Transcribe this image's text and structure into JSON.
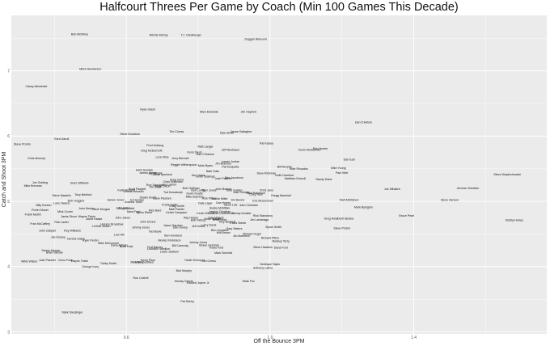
{
  "chart_data": {
    "type": "scatter",
    "title": "Halfcourt Threes Per Game by Coach (Min 100 Games This Decade)",
    "xlabel": "Off the Bounce 3PM",
    "ylabel": "Catch and Shoot 3PM",
    "xlim": [
      0.28,
      1.77
    ],
    "ylim": [
      2.97,
      7.85
    ],
    "xticks": [
      0.6,
      1.0,
      1.4
    ],
    "yticks": [
      3,
      4,
      5,
      6,
      7
    ],
    "tick_labels_x": [
      "0.6",
      "1.0",
      "1.4"
    ],
    "tick_labels_y": [
      "3",
      "4",
      "5",
      "6",
      "7"
    ],
    "grid": true,
    "background": "#ebebeb",
    "grid_color": "#ffffff",
    "points": [
      {
        "label": "Bob McKillop",
        "x": 0.47,
        "y": 7.56
      },
      {
        "label": "Ritchie McKay",
        "x": 0.69,
        "y": 7.55
      },
      {
        "label": "T.J. Otzelberger",
        "x": 0.78,
        "y": 7.55
      },
      {
        "label": "Duggan Blaxxonl",
        "x": 0.96,
        "y": 7.49
      },
      {
        "label": "Mitch Henderson",
        "x": 0.5,
        "y": 7.03
      },
      {
        "label": "Casey Alexander",
        "x": 0.35,
        "y": 6.76
      },
      {
        "label": "Ryan Odom",
        "x": 0.66,
        "y": 6.41
      },
      {
        "label": "Allen Edwards",
        "x": 0.83,
        "y": 6.37
      },
      {
        "label": "Jim Hayford",
        "x": 0.94,
        "y": 6.37
      },
      {
        "label": "Dan D'Antoni",
        "x": 1.26,
        "y": 6.21
      },
      {
        "label": "Tim Cluess",
        "x": 0.74,
        "y": 6.07
      },
      {
        "label": "Kyle Smith",
        "x": 0.88,
        "y": 6.05
      },
      {
        "label": "Jesse Gallagher",
        "x": 0.92,
        "y": 6.07
      },
      {
        "label": "Steve Donahue",
        "x": 0.61,
        "y": 6.03
      },
      {
        "label": "Ezra Garoil",
        "x": 0.42,
        "y": 5.96
      },
      {
        "label": "Pat Kelsey",
        "x": 0.99,
        "y": 5.89
      },
      {
        "label": "Steve Prohm",
        "x": 0.31,
        "y": 5.88
      },
      {
        "label": "Fred Hoiberg",
        "x": 0.68,
        "y": 5.86
      },
      {
        "label": "Matt Langel",
        "x": 0.82,
        "y": 5.84
      },
      {
        "label": "Jeff Neubauer",
        "x": 0.89,
        "y": 5.79
      },
      {
        "label": "Kevin McGeehan",
        "x": 1.11,
        "y": 5.79
      },
      {
        "label": "Ron Hunter",
        "x": 1.14,
        "y": 5.81
      },
      {
        "label": "Greg McDermott",
        "x": 0.67,
        "y": 5.78
      },
      {
        "label": "Kens Davis",
        "x": 0.79,
        "y": 5.75
      },
      {
        "label": "Dan O'Hanlon",
        "x": 0.82,
        "y": 5.72
      },
      {
        "label": "Leon Rice",
        "x": 0.7,
        "y": 5.68
      },
      {
        "label": "Jerry Bennett",
        "x": 0.75,
        "y": 5.66
      },
      {
        "label": "Chris Mooney",
        "x": 0.35,
        "y": 5.66
      },
      {
        "label": "Dan Earl",
        "x": 1.22,
        "y": 5.64
      },
      {
        "label": "Lamar Jordan",
        "x": 0.89,
        "y": 5.61
      },
      {
        "label": "Jim Brannen",
        "x": 0.87,
        "y": 5.58
      },
      {
        "label": "Reggie Witherspoon",
        "x": 0.76,
        "y": 5.56
      },
      {
        "label": "Mark Byars",
        "x": 0.82,
        "y": 5.55
      },
      {
        "label": "Pat Duquette",
        "x": 0.89,
        "y": 5.53
      },
      {
        "label": "Mike Young",
        "x": 1.19,
        "y": 5.51
      },
      {
        "label": "Bill Murphy",
        "x": 1.04,
        "y": 5.53
      },
      {
        "label": "Mike Rhoades",
        "x": 1.08,
        "y": 5.5
      },
      {
        "label": "Herb Sendek",
        "x": 0.65,
        "y": 5.48
      },
      {
        "label": "Nate Oats",
        "x": 0.84,
        "y": 5.46
      },
      {
        "label": "Dave Richman",
        "x": 0.99,
        "y": 5.43
      },
      {
        "label": "Keith Dambrot",
        "x": 1.04,
        "y": 5.4
      },
      {
        "label": "Paul Weir",
        "x": 1.2,
        "y": 5.44
      },
      {
        "label": "Steve Wojciechowski",
        "x": 1.66,
        "y": 5.41
      },
      {
        "label": "James Jones",
        "x": 0.66,
        "y": 5.44
      },
      {
        "label": "Jay Wright",
        "x": 0.68,
        "y": 5.43
      },
      {
        "label": "Jason Spurlock",
        "x": 0.7,
        "y": 5.41
      },
      {
        "label": "Jim Crews",
        "x": 0.8,
        "y": 5.4
      },
      {
        "label": "Kevin Stallings",
        "x": 0.82,
        "y": 5.38
      },
      {
        "label": "Matthew Driscoll",
        "x": 1.07,
        "y": 5.35
      },
      {
        "label": "Randy Rahe",
        "x": 1.15,
        "y": 5.34
      },
      {
        "label": "Ben Jacobson",
        "x": 0.9,
        "y": 5.36
      },
      {
        "label": "Josh Pastner",
        "x": 0.87,
        "y": 5.35
      },
      {
        "label": "Greg Gard",
        "x": 0.74,
        "y": 5.33
      },
      {
        "label": "Chris Holtmann",
        "x": 0.73,
        "y": 5.3
      },
      {
        "label": "Joe Golding",
        "x": 0.36,
        "y": 5.29
      },
      {
        "label": "Buzz Williams",
        "x": 0.47,
        "y": 5.28
      },
      {
        "label": "Mike Brennan",
        "x": 0.34,
        "y": 5.24
      },
      {
        "label": "Jay Ladner",
        "x": 0.72,
        "y": 5.26
      },
      {
        "label": "Ron Sanchez",
        "x": 0.68,
        "y": 5.25
      },
      {
        "label": "Jamie Dixon",
        "x": 0.7,
        "y": 5.23
      },
      {
        "label": "Tim Craft",
        "x": 0.68,
        "y": 5.22
      },
      {
        "label": "Scott Padgett",
        "x": 0.63,
        "y": 5.19
      },
      {
        "label": "Keith Richard",
        "x": 0.6,
        "y": 5.17
      },
      {
        "label": "Bob Hoffman",
        "x": 0.78,
        "y": 5.2
      },
      {
        "label": "Bart Lundy",
        "x": 0.8,
        "y": 5.17
      },
      {
        "label": "Tyler Jones",
        "x": 0.83,
        "y": 5.17
      },
      {
        "label": "John Becker",
        "x": 0.87,
        "y": 5.19
      },
      {
        "label": "Todd Golden",
        "x": 0.9,
        "y": 5.17
      },
      {
        "label": "Chris Jans",
        "x": 0.99,
        "y": 5.17
      },
      {
        "label": "Joe Mihalich",
        "x": 1.34,
        "y": 5.19
      },
      {
        "label": "Jerome Christian",
        "x": 1.55,
        "y": 5.2
      },
      {
        "label": "Donna Johnson",
        "x": 0.62,
        "y": 5.15
      },
      {
        "label": "Tod Kowalczyk",
        "x": 0.73,
        "y": 5.14
      },
      {
        "label": "Josh Schertz",
        "x": 0.92,
        "y": 5.14
      },
      {
        "label": "Nick Robinson",
        "x": 0.96,
        "y": 5.13
      },
      {
        "label": "Kevin Keatts",
        "x": 0.79,
        "y": 5.12
      },
      {
        "label": "Craig Neal",
        "x": 0.96,
        "y": 5.11
      },
      {
        "label": "Tony Benford",
        "x": 0.48,
        "y": 5.1
      },
      {
        "label": "Steve Masiello",
        "x": 0.42,
        "y": 5.09
      },
      {
        "label": "Gregg Marshall",
        "x": 1.03,
        "y": 5.09
      },
      {
        "label": "Mike Boynton",
        "x": 0.79,
        "y": 5.07
      },
      {
        "label": "Shaka Smart",
        "x": 0.66,
        "y": 5.06
      },
      {
        "label": "Dave Paulsen",
        "x": 0.7,
        "y": 5.05
      },
      {
        "label": "Rick Pitino",
        "x": 0.83,
        "y": 5.05
      },
      {
        "label": "Archie Miller",
        "x": 0.86,
        "y": 5.04
      },
      {
        "label": "Matt McMahon",
        "x": 1.22,
        "y": 5.02
      },
      {
        "label": "Steve Henson",
        "x": 1.5,
        "y": 5.02
      },
      {
        "label": "Eric Musselman",
        "x": 0.98,
        "y": 5.01
      },
      {
        "label": "Jim Boone",
        "x": 0.91,
        "y": 5.02
      },
      {
        "label": "James Jones",
        "x": 0.57,
        "y": 5.02
      },
      {
        "label": "Ed Cooley",
        "x": 0.63,
        "y": 5.02
      },
      {
        "label": "Andrew Toole",
        "x": 0.62,
        "y": 4.99
      },
      {
        "label": "Bob Huggins",
        "x": 0.46,
        "y": 5.01
      },
      {
        "label": "Lonc Owens",
        "x": 0.42,
        "y": 4.97
      },
      {
        "label": "Dan Hurley",
        "x": 0.87,
        "y": 4.98
      },
      {
        "label": "Dale Layer",
        "x": 0.82,
        "y": 4.97
      },
      {
        "label": "Billy Donlon",
        "x": 0.37,
        "y": 4.94
      },
      {
        "label": "Frank Haith",
        "x": 0.72,
        "y": 4.95
      },
      {
        "label": "Craig Smith",
        "x": 0.74,
        "y": 4.93
      },
      {
        "label": "Steve Lutz",
        "x": 0.89,
        "y": 4.95
      },
      {
        "label": "John Christian",
        "x": 0.94,
        "y": 4.94
      },
      {
        "label": "Mark Byington",
        "x": 1.26,
        "y": 4.91
      },
      {
        "label": "Porter Moser",
        "x": 0.36,
        "y": 4.87
      },
      {
        "label": "John Becker",
        "x": 0.49,
        "y": 4.89
      },
      {
        "label": "Lacie Morgan",
        "x": 0.53,
        "y": 4.88
      },
      {
        "label": "Jeff Linder",
        "x": 0.59,
        "y": 4.9
      },
      {
        "label": "Rick Byrd",
        "x": 0.68,
        "y": 4.86
      },
      {
        "label": "Bucky McMillan",
        "x": 0.86,
        "y": 4.9
      },
      {
        "label": "Andy Enfield",
        "x": 0.6,
        "y": 4.89
      },
      {
        "label": "Matt Painter",
        "x": 0.74,
        "y": 4.88
      },
      {
        "label": "Jamion Christian",
        "x": 0.86,
        "y": 4.84
      },
      {
        "label": "Mick Cronin",
        "x": 0.43,
        "y": 4.84
      },
      {
        "label": "Dana Ford",
        "x": 0.62,
        "y": 4.84
      },
      {
        "label": "Byron Rimm",
        "x": 0.65,
        "y": 4.83
      },
      {
        "label": "Kelvin Sampson",
        "x": 0.74,
        "y": 4.83
      },
      {
        "label": "Kevin Willard",
        "x": 0.82,
        "y": 4.82
      },
      {
        "label": "Brad Underwood",
        "x": 0.87,
        "y": 4.82
      },
      {
        "label": "Tommy Amaker",
        "x": 0.92,
        "y": 4.82
      },
      {
        "label": "Rick Stansbury",
        "x": 0.98,
        "y": 4.78
      },
      {
        "label": "Frank Martin",
        "x": 0.34,
        "y": 4.8
      },
      {
        "label": "Jamie Dixon",
        "x": 0.44,
        "y": 4.77
      },
      {
        "label": "Wayne Tinkle",
        "x": 0.49,
        "y": 4.77
      },
      {
        "label": "Jared Haase",
        "x": 0.51,
        "y": 4.73
      },
      {
        "label": "John Jakus",
        "x": 0.59,
        "y": 4.75
      },
      {
        "label": "Ray Harper",
        "x": 0.78,
        "y": 4.75
      },
      {
        "label": "Dan Majerle",
        "x": 0.85,
        "y": 4.75
      },
      {
        "label": "Brian Wardle",
        "x": 0.84,
        "y": 4.73
      },
      {
        "label": "Bruce Pearl",
        "x": 1.38,
        "y": 4.78
      },
      {
        "label": "Greg Heiar",
        "x": 1.17,
        "y": 4.74
      },
      {
        "label": "Darin Bodea",
        "x": 1.21,
        "y": 4.74
      },
      {
        "label": "Jim Larranaga",
        "x": 0.97,
        "y": 4.72
      },
      {
        "label": "Bobby Hurley",
        "x": 1.68,
        "y": 4.71
      },
      {
        "label": "Brett Reed",
        "x": 0.86,
        "y": 4.72
      },
      {
        "label": "Bob Richey",
        "x": 0.8,
        "y": 4.71
      },
      {
        "label": "John Dunne",
        "x": 0.66,
        "y": 4.69
      },
      {
        "label": "Fran McCaffery",
        "x": 0.36,
        "y": 4.66
      },
      {
        "label": "Rob Lanier",
        "x": 0.42,
        "y": 4.68
      },
      {
        "label": "Tony Bennett",
        "x": 0.88,
        "y": 4.69
      },
      {
        "label": "Travis Steele",
        "x": 0.91,
        "y": 4.67
      },
      {
        "label": "Horace Broadnax",
        "x": 0.56,
        "y": 4.65
      },
      {
        "label": "Jason Gardner",
        "x": 0.73,
        "y": 4.63
      },
      {
        "label": "Larry Davis",
        "x": 0.83,
        "y": 4.64
      },
      {
        "label": "Jeff Jones",
        "x": 0.8,
        "y": 4.62
      },
      {
        "label": "Byron Smith",
        "x": 1.01,
        "y": 4.61
      },
      {
        "label": "LeVelle Moton",
        "x": 0.53,
        "y": 4.62
      },
      {
        "label": "Johnny Jones",
        "x": 0.64,
        "y": 4.6
      },
      {
        "label": "Dan Hurley",
        "x": 0.75,
        "y": 4.6
      },
      {
        "label": "Gary Waters",
        "x": 0.9,
        "y": 4.58
      },
      {
        "label": "Steve Prohm",
        "x": 1.2,
        "y": 4.59
      },
      {
        "label": "Ben Howland",
        "x": 0.86,
        "y": 4.56
      },
      {
        "label": "John Calipari",
        "x": 0.38,
        "y": 4.55
      },
      {
        "label": "Roy Williams",
        "x": 0.45,
        "y": 4.55
      },
      {
        "label": "Tad Boyle",
        "x": 0.68,
        "y": 4.54
      },
      {
        "label": "Will Brown",
        "x": 0.87,
        "y": 4.52
      },
      {
        "label": "Michael Huger",
        "x": 0.95,
        "y": 4.5
      },
      {
        "label": "Lew Hill",
        "x": 0.58,
        "y": 4.49
      },
      {
        "label": "Ben Howland",
        "x": 0.73,
        "y": 4.48
      },
      {
        "label": "Jim Boeheim",
        "x": 0.92,
        "y": 4.47
      },
      {
        "label": "Joe Dooley",
        "x": 0.41,
        "y": 4.45
      },
      {
        "label": "Dennis Gates",
        "x": 0.46,
        "y": 4.43
      },
      {
        "label": "Richard Pitino",
        "x": 1.0,
        "y": 4.44
      },
      {
        "label": "Montez Robinson",
        "x": 0.72,
        "y": 4.4
      },
      {
        "label": "Rodney Terry",
        "x": 1.03,
        "y": 4.39
      },
      {
        "label": "Ryan Pedon",
        "x": 0.5,
        "y": 4.4
      },
      {
        "label": "Mike McConnell",
        "x": 0.55,
        "y": 4.36
      },
      {
        "label": "Johnny Jones",
        "x": 0.8,
        "y": 4.37
      },
      {
        "label": "Dana Altman",
        "x": 0.58,
        "y": 4.33
      },
      {
        "label": "Brian Katz",
        "x": 0.6,
        "y": 4.31
      },
      {
        "label": "Bill Carmody",
        "x": 0.75,
        "y": 4.32
      },
      {
        "label": "Shane Heirman",
        "x": 0.83,
        "y": 4.33
      },
      {
        "label": "Steve Hawkins",
        "x": 0.98,
        "y": 4.3
      },
      {
        "label": "Dana Ford",
        "x": 1.03,
        "y": 4.29
      },
      {
        "label": "Rod Barnes",
        "x": 0.68,
        "y": 4.3
      },
      {
        "label": "Travis Ford",
        "x": 0.85,
        "y": 4.29
      },
      {
        "label": "Leonard Hamilton",
        "x": 0.69,
        "y": 4.27
      },
      {
        "label": "Danny Kaspar",
        "x": 0.39,
        "y": 4.25
      },
      {
        "label": "Lewis Jackson",
        "x": 0.72,
        "y": 4.23
      },
      {
        "label": "Mark Schmidt",
        "x": 0.87,
        "y": 4.21
      },
      {
        "label": "Brian Wardle",
        "x": 0.4,
        "y": 4.22
      },
      {
        "label": "Willis Wilson",
        "x": 0.33,
        "y": 4.08
      },
      {
        "label": "Josh Pastner",
        "x": 0.38,
        "y": 4.1
      },
      {
        "label": "Geno Ford",
        "x": 0.43,
        "y": 4.1
      },
      {
        "label": "Wayne Tinkle",
        "x": 0.47,
        "y": 4.09
      },
      {
        "label": "Tubby Smith",
        "x": 0.55,
        "y": 4.05
      },
      {
        "label": "Mike Brey",
        "x": 0.63,
        "y": 4.07
      },
      {
        "label": "Mark Gottfried",
        "x": 0.65,
        "y": 4.07
      },
      {
        "label": "Kevin Price",
        "x": 0.66,
        "y": 4.1
      },
      {
        "label": "Heath Schroyer",
        "x": 0.79,
        "y": 4.1
      },
      {
        "label": "Jim Crews",
        "x": 0.83,
        "y": 4.09
      },
      {
        "label": "Dedrique Taylor",
        "x": 1.0,
        "y": 4.04
      },
      {
        "label": "George Ivory",
        "x": 0.5,
        "y": 4.0
      },
      {
        "label": "Anthony Latina",
        "x": 0.98,
        "y": 3.98
      },
      {
        "label": "Bob Murphy",
        "x": 0.76,
        "y": 3.94
      },
      {
        "label": "Ron Cottrell",
        "x": 0.64,
        "y": 3.83
      },
      {
        "label": "Murray Garvin",
        "x": 0.76,
        "y": 3.78
      },
      {
        "label": "Edward Joyner Jr.",
        "x": 0.8,
        "y": 3.75
      },
      {
        "label": "Mark Fox",
        "x": 0.94,
        "y": 3.78
      },
      {
        "label": "Pat Skerry",
        "x": 0.77,
        "y": 3.47
      },
      {
        "label": "Mark Slessinger",
        "x": 0.45,
        "y": 3.3
      }
    ]
  }
}
